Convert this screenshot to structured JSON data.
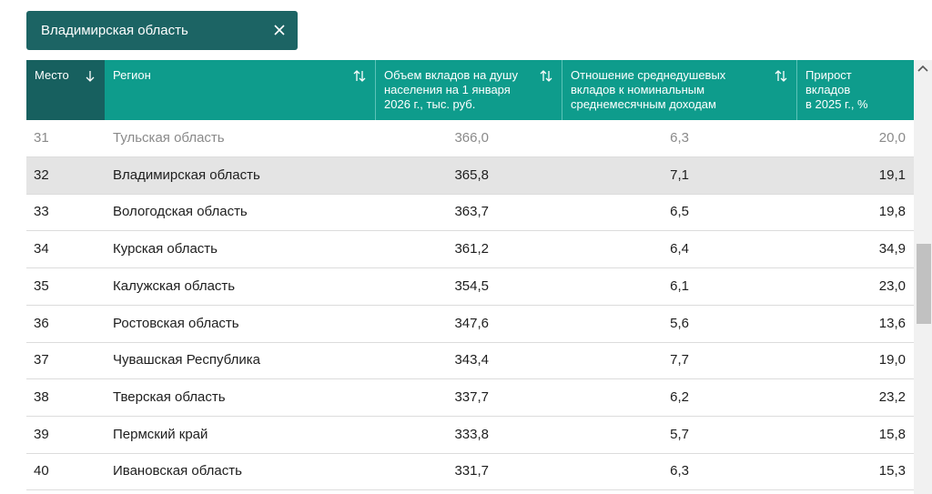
{
  "filter": {
    "label": "Владимирская область"
  },
  "table": {
    "columns": [
      {
        "lines": [
          "Место"
        ]
      },
      {
        "lines": [
          "Регион"
        ]
      },
      {
        "lines": [
          "Объем вкладов на душу",
          "населения на 1 января",
          "2026 г., тыс. руб."
        ]
      },
      {
        "lines": [
          "Отношение среднедушевых",
          "вкладов к номинальным",
          "среднемесячным доходам"
        ]
      },
      {
        "lines": [
          "Прирост",
          "вкладов",
          "в 2025 г., %"
        ]
      }
    ],
    "rows": [
      [
        "31",
        "Тульская область",
        "366,0",
        "6,3",
        "20,0"
      ],
      [
        "32",
        "Владимирская область",
        "365,8",
        "7,1",
        "19,1"
      ],
      [
        "33",
        "Вологодская область",
        "363,7",
        "6,5",
        "19,8"
      ],
      [
        "34",
        "Курская область",
        "361,2",
        "6,4",
        "34,9"
      ],
      [
        "35",
        "Калужская область",
        "354,5",
        "6,1",
        "23,0"
      ],
      [
        "36",
        "Ростовская область",
        "347,6",
        "5,6",
        "13,6"
      ],
      [
        "37",
        "Чувашская Республика",
        "343,4",
        "7,7",
        "19,0"
      ],
      [
        "38",
        "Тверская область",
        "337,7",
        "6,2",
        "23,2"
      ],
      [
        "39",
        "Пермский край",
        "333,8",
        "5,7",
        "15,8"
      ],
      [
        "40",
        "Ивановская область",
        "331,7",
        "6,3",
        "15,3"
      ]
    ]
  }
}
